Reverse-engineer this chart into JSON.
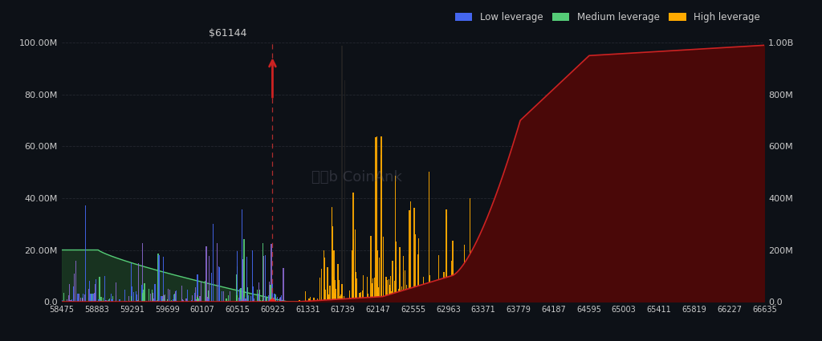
{
  "bg_color": "#0d1117",
  "title_annotation": "$61144",
  "x_ticks": [
    58475,
    58883,
    59291,
    59699,
    60107,
    60515,
    60923,
    61331,
    61739,
    62147,
    62555,
    62963,
    63371,
    63779,
    64187,
    64595,
    65003,
    65411,
    65819,
    66227,
    66635
  ],
  "x_min": 58475,
  "x_max": 66635,
  "y_left_max": 100000000,
  "y_right_max": 1000000000,
  "cursor_x": 60923,
  "grid_color": "#2a2d35",
  "dashed_line_color": "#cc3333",
  "arrow_color": "#cc2222",
  "area_fill_color": "#4a0808",
  "area_line_color": "#cc2222",
  "text_color": "#cccccc",
  "left_ytick_labels": [
    "0.0",
    "20.00M",
    "40.00M",
    "60.00M",
    "80.00M",
    "100.00M"
  ],
  "right_ytick_labels": [
    "0.0",
    "200M",
    "400M",
    "600M",
    "800M",
    "1.00B"
  ],
  "color_low": "#4466ee",
  "color_med": "#55cc77",
  "color_high": "#ffaa00",
  "color_purple": "#8866cc",
  "med_area_fill": "#1a3a22",
  "med_area_line": "#55cc77"
}
